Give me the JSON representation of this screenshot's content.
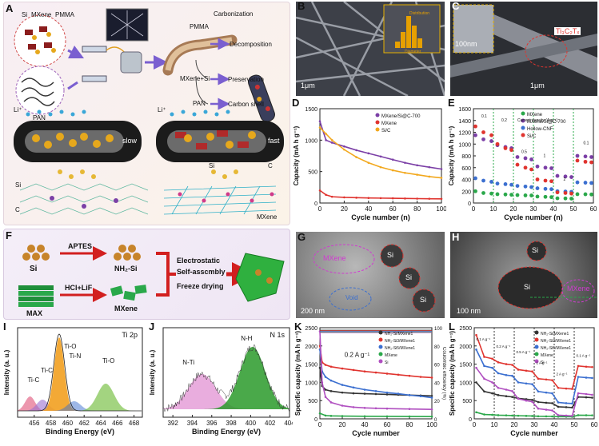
{
  "panel_labels": [
    "A",
    "B",
    "C",
    "D",
    "E",
    "F",
    "G",
    "H",
    "I",
    "J",
    "K",
    "L"
  ],
  "panelA": {
    "legend": [
      "Si",
      "MXene",
      "PMMA"
    ],
    "pan": "PAN",
    "process": [
      "Carbonization",
      "PMMA",
      "Decomposition",
      "MXene+Si",
      "Preservation",
      "PAN",
      "Carbon shell"
    ],
    "li": "Li⁺",
    "slow": "slow",
    "fast": "fast",
    "si_left": "Si",
    "c_left": "C",
    "si_right": "Si",
    "c_right": "C",
    "mxene_right": "MXene"
  },
  "panelB": {
    "scale": "1μm",
    "inset_xlabel": "Diameter",
    "inset_label": "Distribution"
  },
  "panelC": {
    "inset_scale": "100nm",
    "scale": "1μm",
    "label": "Ti₃C₂Tₓ"
  },
  "panelF": {
    "si": "Si",
    "aptes": "APTES",
    "nh2si": "NH₂-Si",
    "max": "MAX",
    "hcl": "HCl+LiF",
    "mxene": "MXene",
    "step1": "Electrostatic",
    "step2": "Self-asscmbly",
    "step3": "Freeze drying"
  },
  "panelG": {
    "mxene": "MXene",
    "si": [
      "Si",
      "Si",
      "Si"
    ],
    "void": "Void",
    "scale": "200 nm"
  },
  "panelH": {
    "si": [
      "Si",
      "Si"
    ],
    "mxene": "MXene",
    "scale": "100 nm"
  },
  "chart_data": [
    {
      "id": "D",
      "type": "line",
      "xlabel": "Cycle number (n)",
      "ylabel": "Capacity (mA h g⁻¹)",
      "xlim": [
        0,
        100
      ],
      "ylim": [
        0,
        1500
      ],
      "xticks": [
        0,
        20,
        40,
        60,
        80,
        100
      ],
      "yticks": [
        0,
        500,
        1000,
        1500
      ],
      "series": [
        {
          "name": "MXene/Si@C-700",
          "color": "#7b3fa6",
          "x": [
            0,
            5,
            10,
            20,
            30,
            40,
            50,
            60,
            70,
            80,
            90,
            100
          ],
          "y": [
            1300,
            1000,
            960,
            900,
            840,
            790,
            740,
            690,
            640,
            600,
            570,
            540
          ]
        },
        {
          "name": "MXene",
          "color": "#e0342f",
          "x": [
            0,
            5,
            10,
            20,
            30,
            40,
            50,
            60,
            70,
            80,
            90,
            100
          ],
          "y": [
            200,
            130,
            100,
            90,
            85,
            80,
            78,
            75,
            72,
            70,
            68,
            66
          ]
        },
        {
          "name": "Si/C",
          "color": "#f2a81d",
          "x": [
            0,
            5,
            10,
            20,
            30,
            40,
            50,
            60,
            70,
            80,
            90,
            100
          ],
          "y": [
            1200,
            1100,
            1000,
            850,
            730,
            640,
            570,
            520,
            480,
            450,
            420,
            400
          ]
        }
      ]
    },
    {
      "id": "E",
      "type": "scatter",
      "xlabel": "Cycle number (n)",
      "ylabel": "Capacity (mA h g⁻¹)",
      "xlim": [
        0,
        60
      ],
      "ylim": [
        0,
        1600
      ],
      "xticks": [
        0,
        10,
        20,
        30,
        40,
        50,
        60
      ],
      "yticks": [
        0,
        200,
        400,
        600,
        800,
        1000,
        1200,
        1400,
        1600
      ],
      "annotations": [
        "0.1",
        "Current density (A g⁻¹)",
        "0.2",
        "0.5",
        "1",
        "2",
        "0.1"
      ],
      "series": [
        {
          "name": "MXene",
          "color": "#2aa84a",
          "x": [
            1,
            5,
            9,
            12,
            16,
            19,
            22,
            26,
            29,
            32,
            36,
            39,
            42,
            46,
            49,
            52,
            56,
            59
          ],
          "y": [
            200,
            170,
            160,
            150,
            145,
            140,
            135,
            130,
            128,
            110,
            105,
            100,
            80,
            78,
            75,
            150,
            148,
            145
          ]
        },
        {
          "name": "MXene/Si@C-700",
          "color": "#7b3fa6",
          "x": [
            1,
            5,
            9,
            12,
            16,
            19,
            22,
            26,
            29,
            32,
            36,
            39,
            42,
            46,
            49,
            52,
            56,
            59
          ],
          "y": [
            1150,
            1080,
            1050,
            980,
            950,
            930,
            780,
            760,
            740,
            620,
            600,
            590,
            460,
            450,
            440,
            800,
            790,
            780
          ]
        },
        {
          "name": "Hollow-CNF",
          "color": "#3b6fd0",
          "x": [
            1,
            5,
            9,
            12,
            16,
            19,
            22,
            26,
            29,
            32,
            36,
            39,
            42,
            46,
            49,
            52,
            56,
            59
          ],
          "y": [
            420,
            380,
            360,
            330,
            320,
            310,
            290,
            280,
            270,
            250,
            240,
            235,
            200,
            195,
            190,
            350,
            345,
            340
          ]
        },
        {
          "name": "Si/C",
          "color": "#e0342f",
          "x": [
            1,
            5,
            9,
            12,
            16,
            19,
            22,
            26,
            29,
            32,
            36,
            39,
            42,
            46,
            49,
            52,
            56,
            59
          ],
          "y": [
            1300,
            1200,
            1150,
            1000,
            930,
            900,
            650,
            600,
            570,
            400,
            380,
            370,
            180,
            170,
            160,
            720,
            700,
            690
          ]
        }
      ]
    },
    {
      "id": "I",
      "type": "line",
      "title": "Ti 2p",
      "xlabel": "Binding Energy (eV)",
      "ylabel": "Intensity (a. u.)",
      "xlim": [
        454,
        469
      ],
      "xticks": [
        456,
        458,
        460,
        462,
        464,
        466,
        468
      ],
      "peaks": [
        "Ti-C",
        "Ti-C",
        "Ti-O",
        "Ti-N",
        "Ti-O"
      ]
    },
    {
      "id": "J",
      "type": "line",
      "title": "N 1s",
      "xlabel": "Binding Energy (eV)",
      "ylabel": "Intensity (a. u.)",
      "xlim": [
        391,
        404
      ],
      "xticks": [
        392,
        394,
        396,
        398,
        400,
        402,
        404
      ],
      "peaks": [
        "N-Ti",
        "N-H"
      ]
    },
    {
      "id": "K",
      "type": "line",
      "xlabel": "Cycle number",
      "ylabel": "Specific capacity (mA h g⁻¹)",
      "y2label": "Coulombic efficiency (%)",
      "xlim": [
        0,
        100
      ],
      "ylim": [
        0,
        2500
      ],
      "xticks": [
        0,
        20,
        40,
        60,
        80,
        100
      ],
      "yticks": [
        0,
        500,
        1000,
        1500,
        2000,
        2500
      ],
      "y2ticks": [
        0,
        20,
        40,
        60,
        80,
        100
      ],
      "annotation": "0.2 A g⁻¹",
      "series": [
        {
          "name": "NH₂-Si/MXene1",
          "color": "#333333",
          "x": [
            0,
            2,
            5,
            10,
            20,
            30,
            40,
            50,
            60,
            70,
            80,
            90,
            100
          ],
          "y": [
            1400,
            900,
            800,
            760,
            720,
            700,
            690,
            680,
            670,
            660,
            650,
            640,
            630
          ]
        },
        {
          "name": "NH₂-Si3/MXene1",
          "color": "#e0342f",
          "x": [
            0,
            2,
            5,
            10,
            20,
            30,
            40,
            50,
            60,
            70,
            80,
            90,
            100
          ],
          "y": [
            2000,
            1550,
            1480,
            1430,
            1380,
            1340,
            1300,
            1270,
            1240,
            1210,
            1180,
            1150,
            1130
          ]
        },
        {
          "name": "NH₂-Si5/MXene1",
          "color": "#3b6fd0",
          "x": [
            0,
            2,
            5,
            10,
            20,
            30,
            40,
            50,
            60,
            70,
            80,
            90,
            100
          ],
          "y": [
            1900,
            1300,
            1150,
            1050,
            930,
            860,
            800,
            760,
            720,
            690,
            650,
            620,
            580
          ]
        },
        {
          "name": "MXene",
          "color": "#2aa84a",
          "x": [
            0,
            5,
            10,
            20,
            40,
            60,
            80,
            100
          ],
          "y": [
            150,
            90,
            80,
            75,
            70,
            68,
            65,
            62
          ]
        },
        {
          "name": "Si",
          "color": "#b04fc0",
          "x": [
            0,
            2,
            5,
            10,
            20,
            30,
            40,
            50,
            60,
            80,
            100
          ],
          "y": [
            2400,
            1000,
            600,
            450,
            360,
            320,
            300,
            290,
            280,
            270,
            260
          ]
        }
      ]
    },
    {
      "id": "L",
      "type": "line",
      "xlabel": "Cycle number",
      "ylabel": "Specific capacity (mA h g⁻¹)",
      "xlim": [
        0,
        60
      ],
      "ylim": [
        0,
        2500
      ],
      "xticks": [
        0,
        10,
        20,
        30,
        40,
        50,
        60
      ],
      "yticks": [
        0,
        500,
        1000,
        1500,
        2000,
        2500
      ],
      "annotations": [
        "0.1 A g⁻¹",
        "0.2 A g⁻¹",
        "0.5 A g⁻¹",
        "1 A g⁻¹",
        "2 A g⁻¹",
        "0.1 A g⁻¹"
      ],
      "series": [
        {
          "name": "NH₂-Si/MXene1",
          "color": "#333333",
          "x": [
            1,
            5,
            9,
            12,
            16,
            19,
            22,
            26,
            29,
            32,
            36,
            39,
            42,
            46,
            49,
            52,
            56,
            59
          ],
          "y": [
            1000,
            750,
            700,
            650,
            620,
            600,
            560,
            540,
            520,
            460,
            440,
            430,
            330,
            320,
            310,
            600,
            590,
            580
          ]
        },
        {
          "name": "NH₂-Si3/MXene1",
          "color": "#e0342f",
          "x": [
            1,
            5,
            9,
            12,
            16,
            19,
            22,
            26,
            29,
            32,
            36,
            39,
            42,
            46,
            49,
            52,
            56,
            59
          ],
          "y": [
            2300,
            1700,
            1650,
            1550,
            1500,
            1480,
            1350,
            1320,
            1300,
            1100,
            1080,
            1060,
            850,
            830,
            820,
            1450,
            1430,
            1420
          ]
        },
        {
          "name": "NH₂-Si5/MXene1",
          "color": "#3b6fd0",
          "x": [
            1,
            5,
            9,
            12,
            16,
            19,
            22,
            26,
            29,
            32,
            36,
            39,
            42,
            46,
            49,
            52,
            56,
            59
          ],
          "y": [
            1900,
            1450,
            1400,
            1250,
            1200,
            1180,
            1000,
            970,
            950,
            750,
            720,
            700,
            450,
            430,
            420,
            1150,
            1130,
            1120
          ]
        },
        {
          "name": "MXene",
          "color": "#2aa84a",
          "x": [
            1,
            5,
            9,
            12,
            16,
            19,
            22,
            26,
            29,
            32,
            36,
            39,
            42,
            46,
            49,
            52,
            56,
            59
          ],
          "y": [
            180,
            120,
            110,
            100,
            95,
            90,
            85,
            80,
            78,
            70,
            68,
            66,
            60,
            58,
            56,
            100,
            98,
            96
          ]
        },
        {
          "name": "Si",
          "color": "#b04fc0",
          "x": [
            1,
            5,
            9,
            12,
            16,
            19,
            22,
            26,
            29,
            32,
            36,
            39,
            42,
            46,
            49,
            52,
            56,
            59
          ],
          "y": [
            1400,
            1100,
            1000,
            850,
            800,
            760,
            550,
            500,
            470,
            280,
            250,
            230,
            100,
            90,
            80,
            700,
            680,
            660
          ]
        }
      ]
    }
  ]
}
